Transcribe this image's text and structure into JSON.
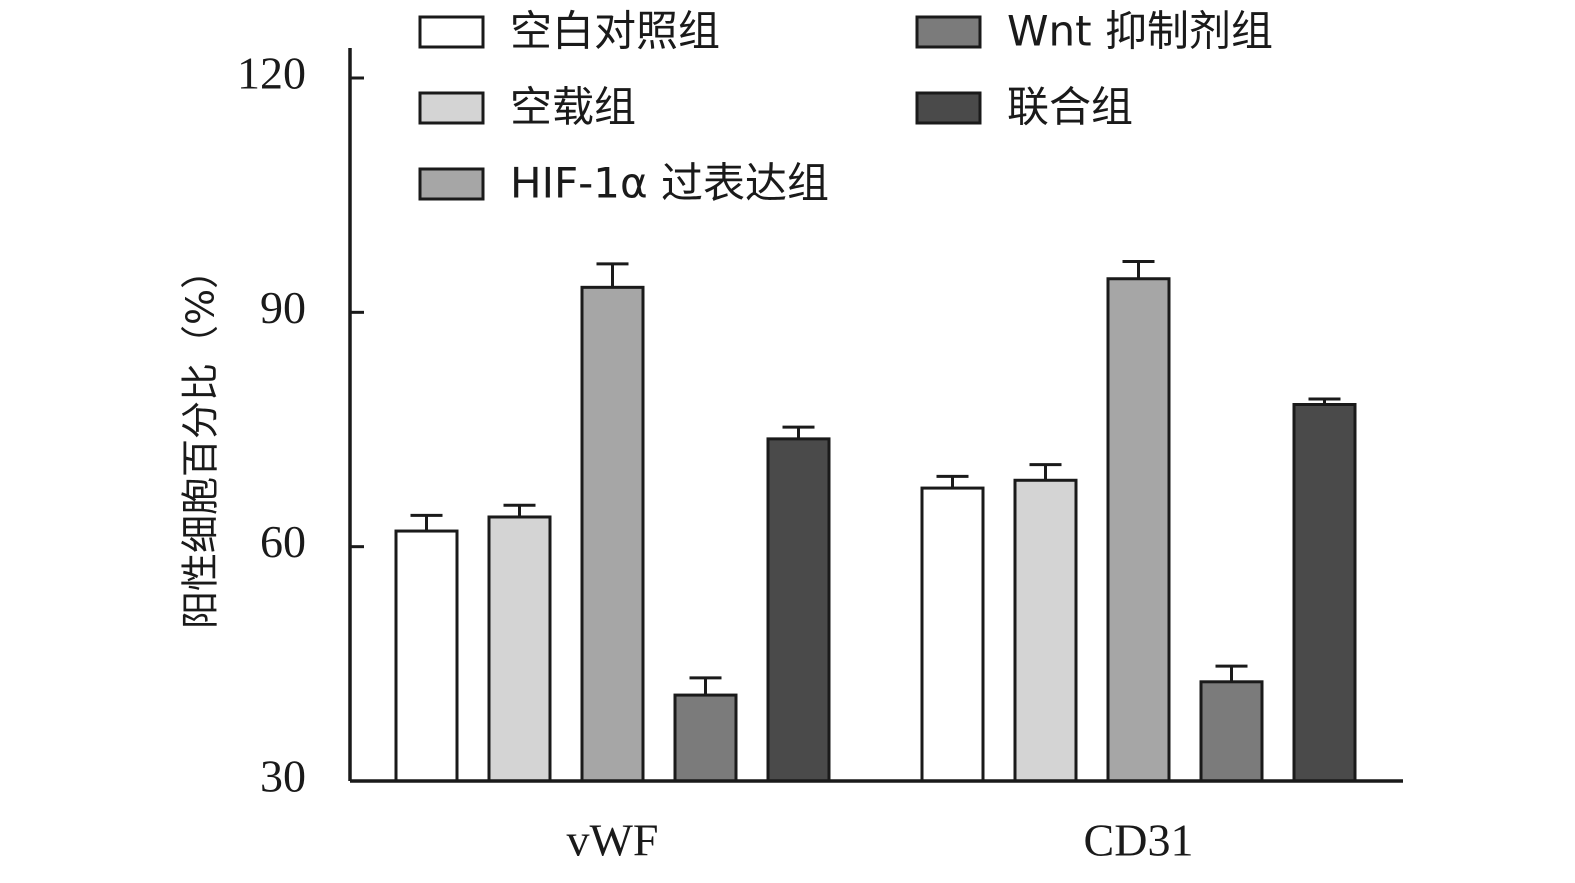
{
  "chart_data": {
    "type": "bar",
    "ylabel": "阳性细胞百分比（%）",
    "ylim": [
      30,
      120
    ],
    "yticks": [
      "30",
      "60",
      "90",
      "120"
    ],
    "categories": [
      "vWF",
      "CD31"
    ],
    "legend_position": "top",
    "series": [
      {
        "name": "空白对照组",
        "color": "#ffffff",
        "values": [
          62,
          67.5
        ],
        "errors": [
          2,
          1.5
        ]
      },
      {
        "name": "空载组",
        "color": "#d4d4d4",
        "values": [
          63.8,
          68.5
        ],
        "errors": [
          1.5,
          2
        ]
      },
      {
        "name": "HIF-1α 过表达组",
        "color": "#a6a6a6",
        "values": [
          93.2,
          94.3
        ],
        "errors": [
          3,
          2.2
        ]
      },
      {
        "name": "Wnt 抑制剂组",
        "color": "#7b7b7b",
        "values": [
          41,
          42.7
        ],
        "errors": [
          2.2,
          2
        ]
      },
      {
        "name": "联合组",
        "color": "#4a4a4a",
        "values": [
          73.8,
          78.2
        ],
        "errors": [
          1.5,
          0.7
        ]
      }
    ]
  }
}
